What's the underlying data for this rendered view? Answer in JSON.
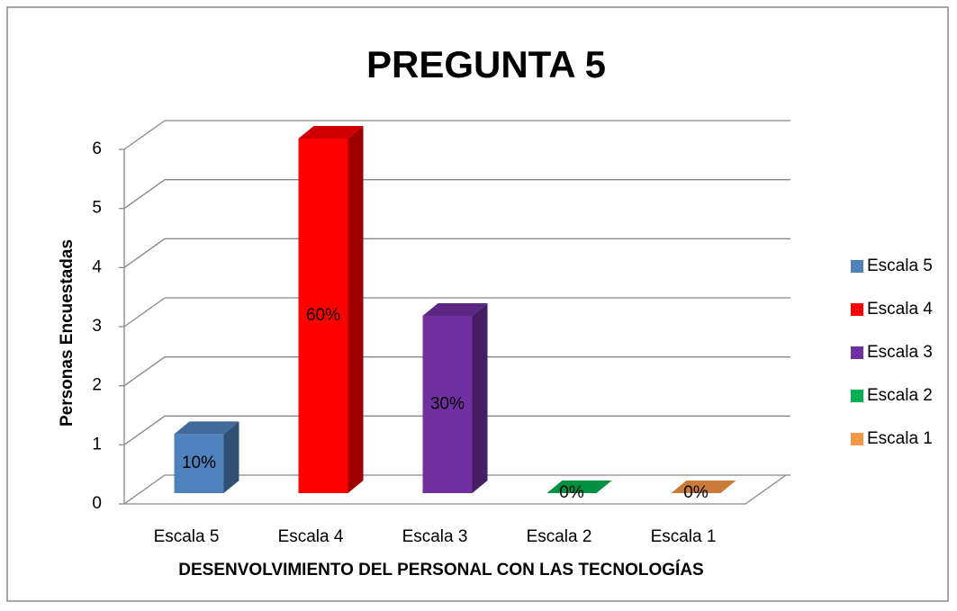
{
  "chart_data": {
    "type": "bar3d",
    "title": "PREGUNTA 5",
    "y_axis_label": "Personas Encuestadas",
    "x_axis_label": "DESENVOLVIMIENTO DEL PERSONAL CON LAS TECNOLOGÍAS",
    "categories": [
      "Escala 5",
      "Escala 4",
      "Escala 3",
      "Escala 2",
      "Escala 1"
    ],
    "values": [
      1,
      6,
      3,
      0,
      0
    ],
    "data_labels": [
      "10%",
      "60%",
      "30%",
      "0%",
      "0%"
    ],
    "colors": [
      "#4f81bd",
      "#ff0000",
      "#7030a0",
      "#00b050",
      "#f79646"
    ],
    "ylim": [
      0,
      6
    ],
    "yticks": [
      0,
      1,
      2,
      3,
      4,
      5,
      6
    ],
    "grid": true,
    "legend": "right"
  }
}
